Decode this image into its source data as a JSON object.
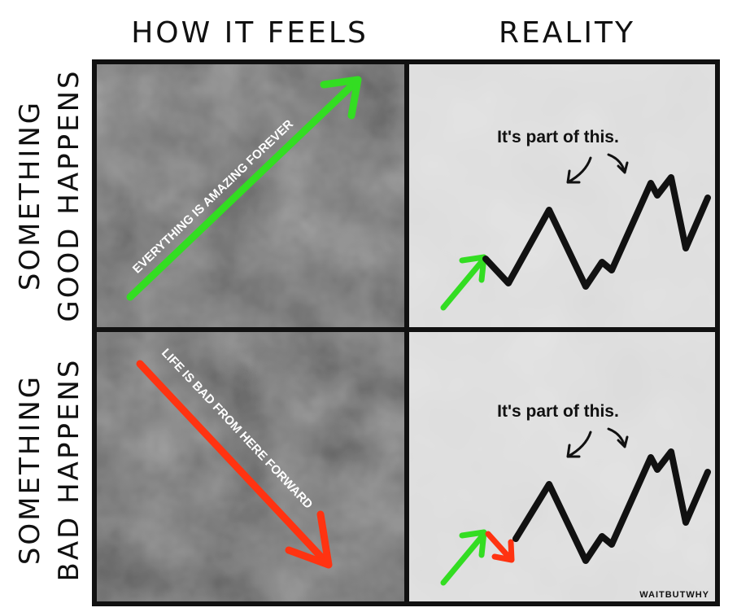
{
  "columns": [
    "HOW IT FEELS",
    "REALITY"
  ],
  "rows": [
    {
      "label": [
        "SOMETHING",
        "GOOD HAPPENS"
      ],
      "feels_arrow_text": "EVERYTHING IS AMAZING FOREVER",
      "reality_note": "It's part of this."
    },
    {
      "label": [
        "SOMETHING",
        "BAD HAPPENS"
      ],
      "feels_arrow_text": "LIFE IS BAD FROM HERE FORWARD",
      "reality_note": "It's part of this."
    }
  ],
  "credit": "WAITBUTWHY"
}
